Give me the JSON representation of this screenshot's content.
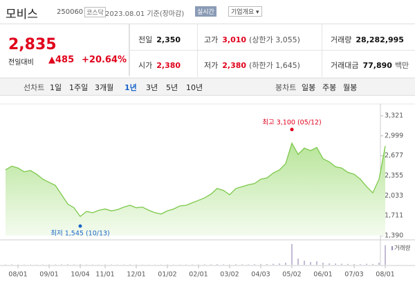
{
  "header": {
    "name": "모비스",
    "code": "250060",
    "market": "코스닥",
    "date": "2023.08.01 기준(장마감)",
    "realtime": "실시간",
    "company": "기업개요 ▾"
  },
  "price": {
    "current": "2,835",
    "change_label": "전일대비",
    "change": "▲485",
    "rate": "+20.64%"
  },
  "table": {
    "rows": [
      [
        [
          "전일",
          "2,350",
          ""
        ],
        [
          "고가",
          "3,010",
          "(상한가 3,055)"
        ],
        [
          "거래량",
          "28,282,995",
          ""
        ]
      ],
      [
        [
          "시가",
          "2,380",
          ""
        ],
        [
          "저가",
          "2,380",
          "(하한가 1,645)"
        ],
        [
          "거래대금",
          "77,890",
          "백만"
        ]
      ]
    ]
  },
  "tabs": {
    "line_label": "선차트",
    "line": [
      "1일",
      "1주일",
      "3개월",
      "1년",
      "3년",
      "5년",
      "10년"
    ],
    "active": "1년",
    "candle_label": "봉차트",
    "candle": [
      "일봉",
      "주봉",
      "월봉"
    ]
  },
  "chart_data": {
    "type": "area",
    "categories": [
      null,
      null,
      "08/01",
      null,
      null,
      null,
      null,
      "09/01",
      null,
      null,
      null,
      null,
      "10/04",
      null,
      null,
      null,
      "11/01",
      null,
      null,
      null,
      null,
      "12/01",
      null,
      null,
      null,
      null,
      "01/02",
      null,
      null,
      null,
      null,
      "02/01",
      null,
      null,
      null,
      null,
      "03/02",
      null,
      null,
      null,
      null,
      "04/03",
      null,
      null,
      null,
      null,
      "05/02",
      null,
      null,
      null,
      null,
      "06/01",
      null,
      null,
      null,
      null,
      "07/03",
      null,
      null,
      null,
      null,
      "08/01"
    ],
    "series": [
      {
        "color": "#7cc84a",
        "values": [
          2450,
          2510,
          2480,
          2420,
          2440,
          2380,
          2300,
          2250,
          2200,
          2050,
          1900,
          1840,
          1700,
          1780,
          1760,
          1800,
          1820,
          1790,
          1810,
          1850,
          1880,
          1840,
          1850,
          1800,
          1760,
          1740,
          1790,
          1820,
          1870,
          1880,
          1920,
          1960,
          2000,
          2060,
          2150,
          2120,
          2050,
          2150,
          2180,
          2210,
          2230,
          2300,
          2320,
          2400,
          2450,
          2550,
          2880,
          2700,
          2800,
          2760,
          2810,
          2630,
          2580,
          2500,
          2480,
          2410,
          2380,
          2300,
          2180,
          2080,
          2300,
          2835
        ]
      }
    ],
    "volume": {
      "name": "거래량",
      "color": "#9b8bb8",
      "values": [
        400000,
        500000,
        350000,
        300000,
        400000,
        300000,
        350000,
        500000,
        450000,
        600000,
        700000,
        500000,
        800000,
        400000,
        350000,
        300000,
        450000,
        400000,
        300000,
        350000,
        500000,
        400000,
        300000,
        250000,
        300000,
        350000,
        400000,
        300000,
        350000,
        450000,
        400000,
        500000,
        600000,
        700000,
        900000,
        600000,
        500000,
        800000,
        700000,
        600000,
        900000,
        1200000,
        1000000,
        1500000,
        2000000,
        3000000,
        30000000,
        9000000,
        6000000,
        4000000,
        5000000,
        3000000,
        2000000,
        1800000,
        1500000,
        1200000,
        1000000,
        900000,
        1500000,
        1200000,
        3000000,
        28282995
      ]
    },
    "ylim": [
      1390,
      3321
    ],
    "yticks": [
      {
        "value": 3321,
        "label": "3,321"
      },
      {
        "value": 2999,
        "label": "2,999"
      },
      {
        "value": 2677,
        "label": "2,677"
      },
      {
        "value": 2355,
        "label": "2,355"
      },
      {
        "value": 2033,
        "label": "2,033"
      },
      {
        "value": 1711,
        "label": "1,711"
      },
      {
        "value": 1390,
        "label": "1,390"
      }
    ],
    "grid": false,
    "annotations": [
      {
        "text": "최고 3,100 (05/12)",
        "value": 3100,
        "color": "#e0001b",
        "at": "max"
      },
      {
        "text": "최저 1,545 (10/13)",
        "value": 1545,
        "color": "#1a66c9",
        "at": "min"
      }
    ]
  }
}
